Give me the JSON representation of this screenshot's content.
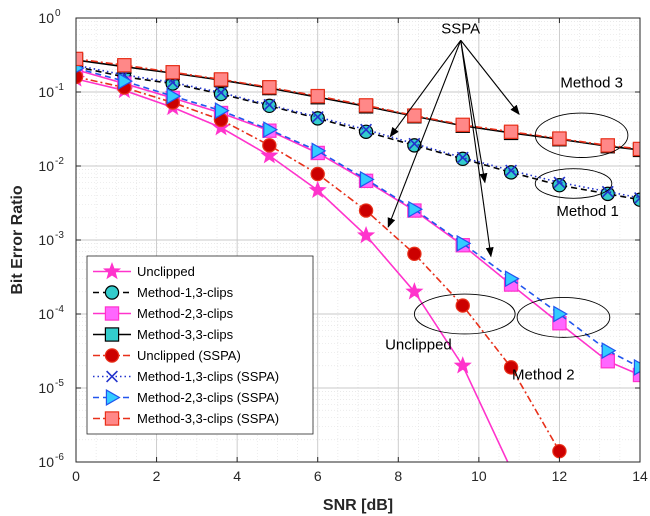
{
  "chart_data": {
    "type": "line",
    "title": "",
    "xlabel": "SNR [dB]",
    "ylabel": "Bit Error Ratio",
    "xlim": [
      0,
      14
    ],
    "ylim": [
      1e-06,
      1
    ],
    "yscale": "log",
    "xticks": [
      "0",
      "2",
      "4",
      "6",
      "8",
      "10",
      "12",
      "14"
    ],
    "yticks": [
      {
        "base": "10",
        "exp": "-6"
      },
      {
        "base": "10",
        "exp": "-5"
      },
      {
        "base": "10",
        "exp": "-4"
      },
      {
        "base": "10",
        "exp": "-3"
      },
      {
        "base": "10",
        "exp": "-2"
      },
      {
        "base": "10",
        "exp": "-1"
      },
      {
        "base": "10",
        "exp": "0"
      }
    ],
    "grid": true,
    "legend_position": "bottom-left",
    "series": [
      {
        "name": "Unclipped",
        "color": "#ff33cc",
        "dash": "solid",
        "marker": "star",
        "marker_fill": "#ff33cc",
        "x": [
          0,
          1.2,
          2.4,
          3.6,
          4.8,
          6.0,
          7.2,
          8.4,
          9.6,
          10.8
        ],
        "y": [
          0.15,
          0.105,
          0.062,
          0.033,
          0.0138,
          0.0047,
          0.00115,
          0.0002,
          2e-05,
          8e-07
        ]
      },
      {
        "name": "Method-1,3-clips",
        "color": "#000000",
        "dash": "dash",
        "marker": "circle",
        "marker_fill": "#33cccc",
        "x": [
          0,
          1.2,
          2.4,
          3.6,
          4.8,
          6.0,
          7.2,
          8.4,
          9.6,
          10.8,
          12,
          13.2,
          14
        ],
        "y": [
          0.22,
          0.16,
          0.13,
          0.094,
          0.065,
          0.044,
          0.029,
          0.019,
          0.0125,
          0.0082,
          0.0055,
          0.0042,
          0.0035
        ]
      },
      {
        "name": "Method-2,3-clips",
        "color": "#ff33cc",
        "dash": "solid",
        "marker": "square",
        "marker_fill": "#ff66ff",
        "x": [
          0,
          1.2,
          2.4,
          3.6,
          4.8,
          6.0,
          7.2,
          8.4,
          9.6,
          10.8,
          12,
          13.2,
          14
        ],
        "y": [
          0.2,
          0.13,
          0.083,
          0.052,
          0.03,
          0.015,
          0.0063,
          0.0025,
          0.00085,
          0.00025,
          7.5e-05,
          2.3e-05,
          1.5e-05
        ]
      },
      {
        "name": "Method-3,3-clips",
        "color": "#000000",
        "dash": "solid",
        "marker": "square",
        "marker_fill": "#33cccc",
        "x": [
          0,
          1.2,
          2.4,
          3.6,
          4.8,
          6.0,
          7.2,
          8.4,
          9.6,
          10.8,
          12,
          13.2,
          14
        ],
        "y": [
          0.27,
          0.22,
          0.18,
          0.145,
          0.113,
          0.085,
          0.064,
          0.047,
          0.035,
          0.028,
          0.023,
          0.0185,
          0.0165
        ]
      },
      {
        "name": "Unclipped (SSPA)",
        "color": "#e8301a",
        "dash": "dashdot",
        "marker": "circle",
        "marker_fill": "#cc0000",
        "x": [
          0,
          1.2,
          2.4,
          3.6,
          4.8,
          6.0,
          7.2,
          8.4,
          9.6,
          10.8,
          12
        ],
        "y": [
          0.16,
          0.115,
          0.072,
          0.042,
          0.019,
          0.0078,
          0.0025,
          0.00065,
          0.00013,
          1.9e-05,
          1.4e-06
        ]
      },
      {
        "name": "Method-1,3-clips (SSPA)",
        "color": "#2233cc",
        "dash": "dot",
        "marker": "x",
        "marker_fill": "#2233cc",
        "x": [
          0,
          1.2,
          2.4,
          3.6,
          4.8,
          6.0,
          7.2,
          8.4,
          9.6,
          10.8,
          12,
          13.2,
          14
        ],
        "y": [
          0.23,
          0.17,
          0.135,
          0.098,
          0.067,
          0.046,
          0.031,
          0.02,
          0.013,
          0.0087,
          0.006,
          0.0045,
          0.0037
        ]
      },
      {
        "name": "Method-2,3-clips (SSPA)",
        "color": "#2255ee",
        "dash": "dash",
        "marker": "triangle",
        "marker_fill": "#33ccff",
        "x": [
          0,
          1.2,
          2.4,
          3.6,
          4.8,
          6.0,
          7.2,
          8.4,
          9.6,
          10.8,
          12,
          13.2,
          14
        ],
        "y": [
          0.21,
          0.14,
          0.088,
          0.056,
          0.031,
          0.016,
          0.0066,
          0.0026,
          0.0009,
          0.0003,
          0.0001,
          3.2e-05,
          1.9e-05
        ]
      },
      {
        "name": "Method-3,3-clips (SSPA)",
        "color": "#e8301a",
        "dash": "dashdot",
        "marker": "square",
        "marker_fill": "#ff8888",
        "x": [
          0,
          1.2,
          2.4,
          3.6,
          4.8,
          6.0,
          7.2,
          8.4,
          9.6,
          10.8,
          12,
          13.2,
          14
        ],
        "y": [
          0.28,
          0.23,
          0.185,
          0.148,
          0.116,
          0.088,
          0.066,
          0.048,
          0.036,
          0.029,
          0.0235,
          0.019,
          0.017
        ]
      }
    ],
    "annotations": [
      {
        "text": "SSPA",
        "x": 9.55,
        "y": 0.62
      },
      {
        "text": "Method 3",
        "x": 12.8,
        "y": 0.115
      },
      {
        "text": "Method 1",
        "x": 12.7,
        "y": 0.0021
      },
      {
        "text": "Method 2",
        "x": 11.6,
        "y": 1.3e-05
      },
      {
        "text": "Unclipped",
        "x": 8.5,
        "y": 3.3e-05
      }
    ],
    "ellipses": [
      {
        "cx": 12.55,
        "cy": 0.026,
        "rx": 1.15,
        "ry_decades": 0.3
      },
      {
        "cx": 12.35,
        "cy": 0.0058,
        "rx": 0.95,
        "ry_decades": 0.2
      },
      {
        "cx": 12.1,
        "cy": 9e-05,
        "rx": 1.15,
        "ry_decades": 0.27
      },
      {
        "cx": 9.65,
        "cy": 0.0001,
        "rx": 1.25,
        "ry_decades": 0.27
      }
    ],
    "arrows": [
      {
        "from": [
          9.55,
          0.5
        ],
        "to": [
          7.8,
          0.025
        ]
      },
      {
        "from": [
          9.55,
          0.5
        ],
        "to": [
          7.75,
          0.0015
        ]
      },
      {
        "from": [
          9.55,
          0.5
        ],
        "to": [
          10.15,
          0.006
        ]
      },
      {
        "from": [
          9.55,
          0.5
        ],
        "to": [
          10.3,
          0.0006
        ]
      },
      {
        "from": [
          9.55,
          0.5
        ],
        "to": [
          11.0,
          0.05
        ]
      }
    ]
  }
}
